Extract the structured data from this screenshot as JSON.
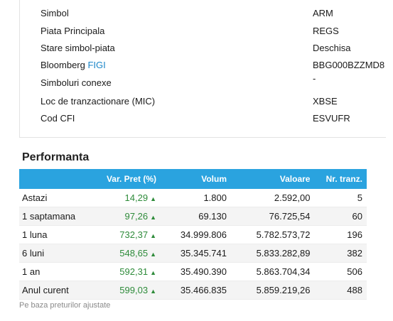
{
  "info": {
    "rows": [
      {
        "label": "Simbol",
        "value": "ARM"
      },
      {
        "label": "Piata Principala",
        "value": "REGS"
      },
      {
        "label": "Stare simbol-piata",
        "value": "Deschisa"
      },
      {
        "label_prefix": "Bloomberg ",
        "label_link": "FIGI",
        "value": "BBG000BZZMD8"
      },
      {
        "label": "Simboluri conexe",
        "value": "-"
      },
      {
        "label": "Loc de tranzactionare (MIC)",
        "value": "XBSE"
      },
      {
        "label": "Cod CFI",
        "value": "ESVUFR"
      }
    ]
  },
  "performance": {
    "title": "Performanta",
    "columns": [
      "",
      "Var. Pret (%)",
      "Volum",
      "Valoare",
      "Nr. tranz."
    ],
    "rows": [
      {
        "period": "Astazi",
        "var": "14,29",
        "volume": "1.800",
        "value": "2.592,00",
        "trades": "5"
      },
      {
        "period": "1 saptamana",
        "var": "97,26",
        "volume": "69.130",
        "value": "76.725,54",
        "trades": "60"
      },
      {
        "period": "1 luna",
        "var": "732,37",
        "volume": "34.999.806",
        "value": "5.782.573,72",
        "trades": "196"
      },
      {
        "period": "6 luni",
        "var": "548,65",
        "volume": "35.345.741",
        "value": "5.833.282,89",
        "trades": "382"
      },
      {
        "period": "1 an",
        "var": "592,31",
        "volume": "35.490.390",
        "value": "5.863.704,34",
        "trades": "506"
      },
      {
        "period": "Anul curent",
        "var": "599,03",
        "volume": "35.466.835",
        "value": "5.859.219,26",
        "trades": "488"
      }
    ],
    "footnote": "Pe baza preturilor ajustate"
  },
  "colors": {
    "header_bg": "#2aa3df",
    "positive": "#2e8b3a",
    "link": "#1a86c8"
  },
  "icons": {
    "trend": "up-triangle-icon"
  }
}
